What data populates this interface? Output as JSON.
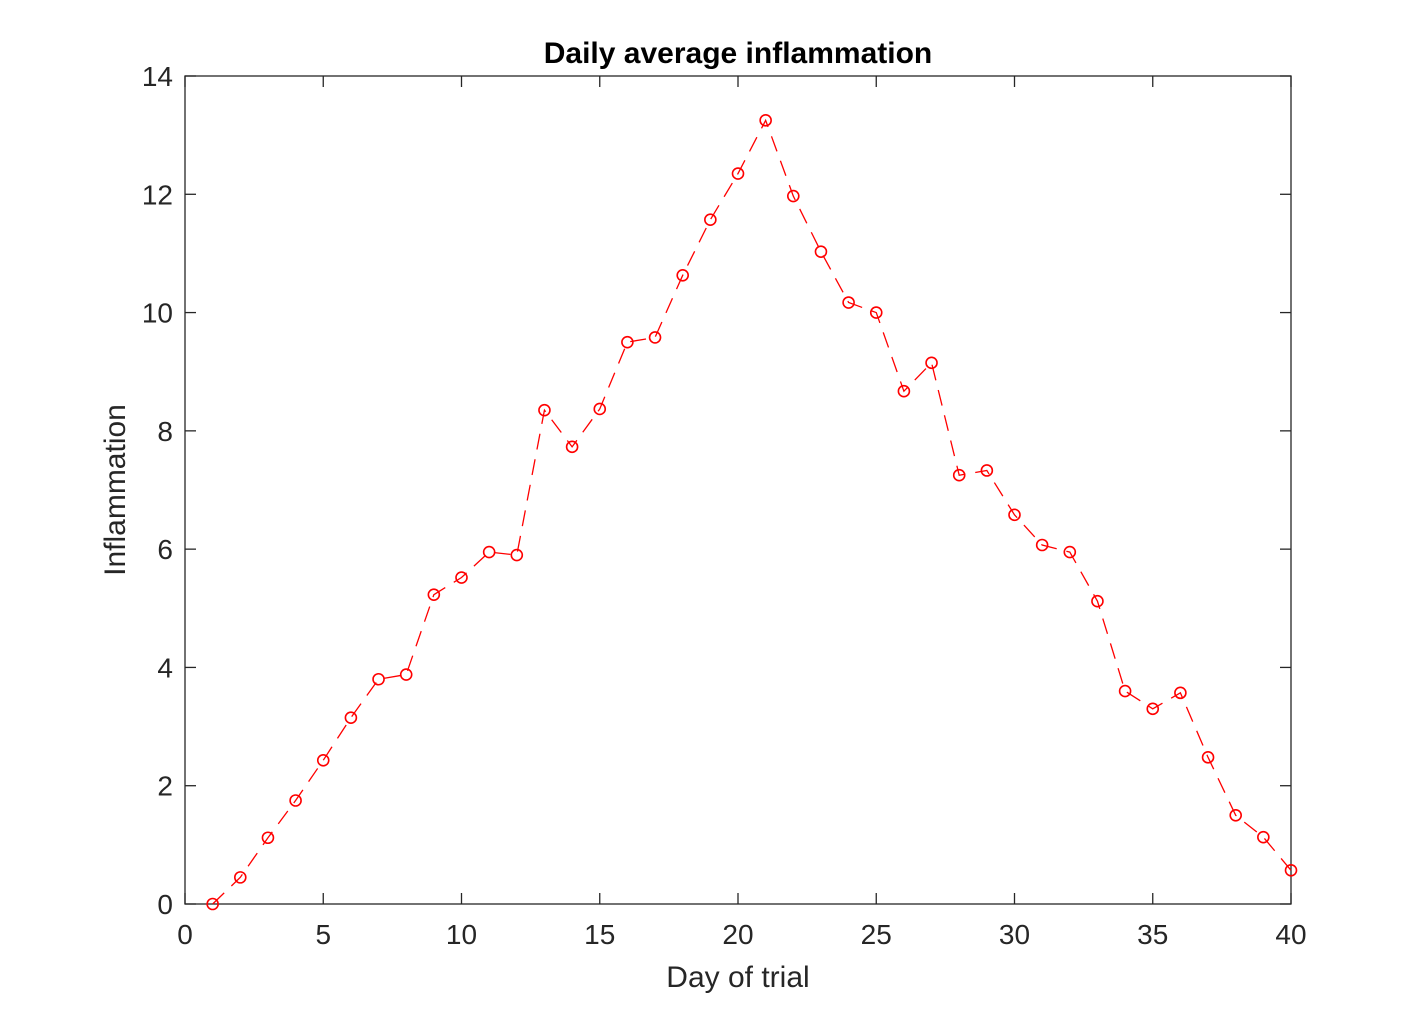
{
  "colors": {
    "series": "#ff0000",
    "axes": "#262626",
    "background": "#ffffff"
  },
  "chart_data": {
    "type": "line",
    "title": "Daily average inflammation",
    "xlabel": "Day of trial",
    "ylabel": "Inflammation",
    "xlim": [
      0,
      40
    ],
    "ylim": [
      0,
      14
    ],
    "xticks": [
      0,
      5,
      10,
      15,
      20,
      25,
      30,
      35,
      40
    ],
    "yticks": [
      0,
      2,
      4,
      6,
      8,
      10,
      12,
      14
    ],
    "grid": false,
    "box": true,
    "line_style": "dashed",
    "marker": "circle",
    "series": [
      {
        "x": [
          1,
          2,
          3,
          4,
          5,
          6,
          7,
          8,
          9,
          10,
          11,
          12,
          13,
          14,
          15,
          16,
          17,
          18,
          19,
          20,
          21,
          22,
          23,
          24,
          25,
          26,
          27,
          28,
          29,
          30,
          31,
          32,
          33,
          34,
          35,
          36,
          37,
          38,
          39,
          40
        ],
        "values": [
          0,
          0.45,
          1.12,
          1.75,
          2.43,
          3.15,
          3.8,
          3.88,
          5.23,
          5.52,
          5.95,
          5.9,
          8.35,
          7.73,
          8.37,
          9.5,
          9.58,
          10.63,
          11.57,
          12.35,
          13.25,
          11.97,
          11.03,
          10.17,
          10.0,
          8.67,
          9.15,
          7.25,
          7.33,
          6.58,
          6.07,
          5.95,
          5.12,
          3.6,
          3.3,
          3.57,
          2.48,
          1.5,
          1.13,
          0.57
        ]
      }
    ]
  }
}
